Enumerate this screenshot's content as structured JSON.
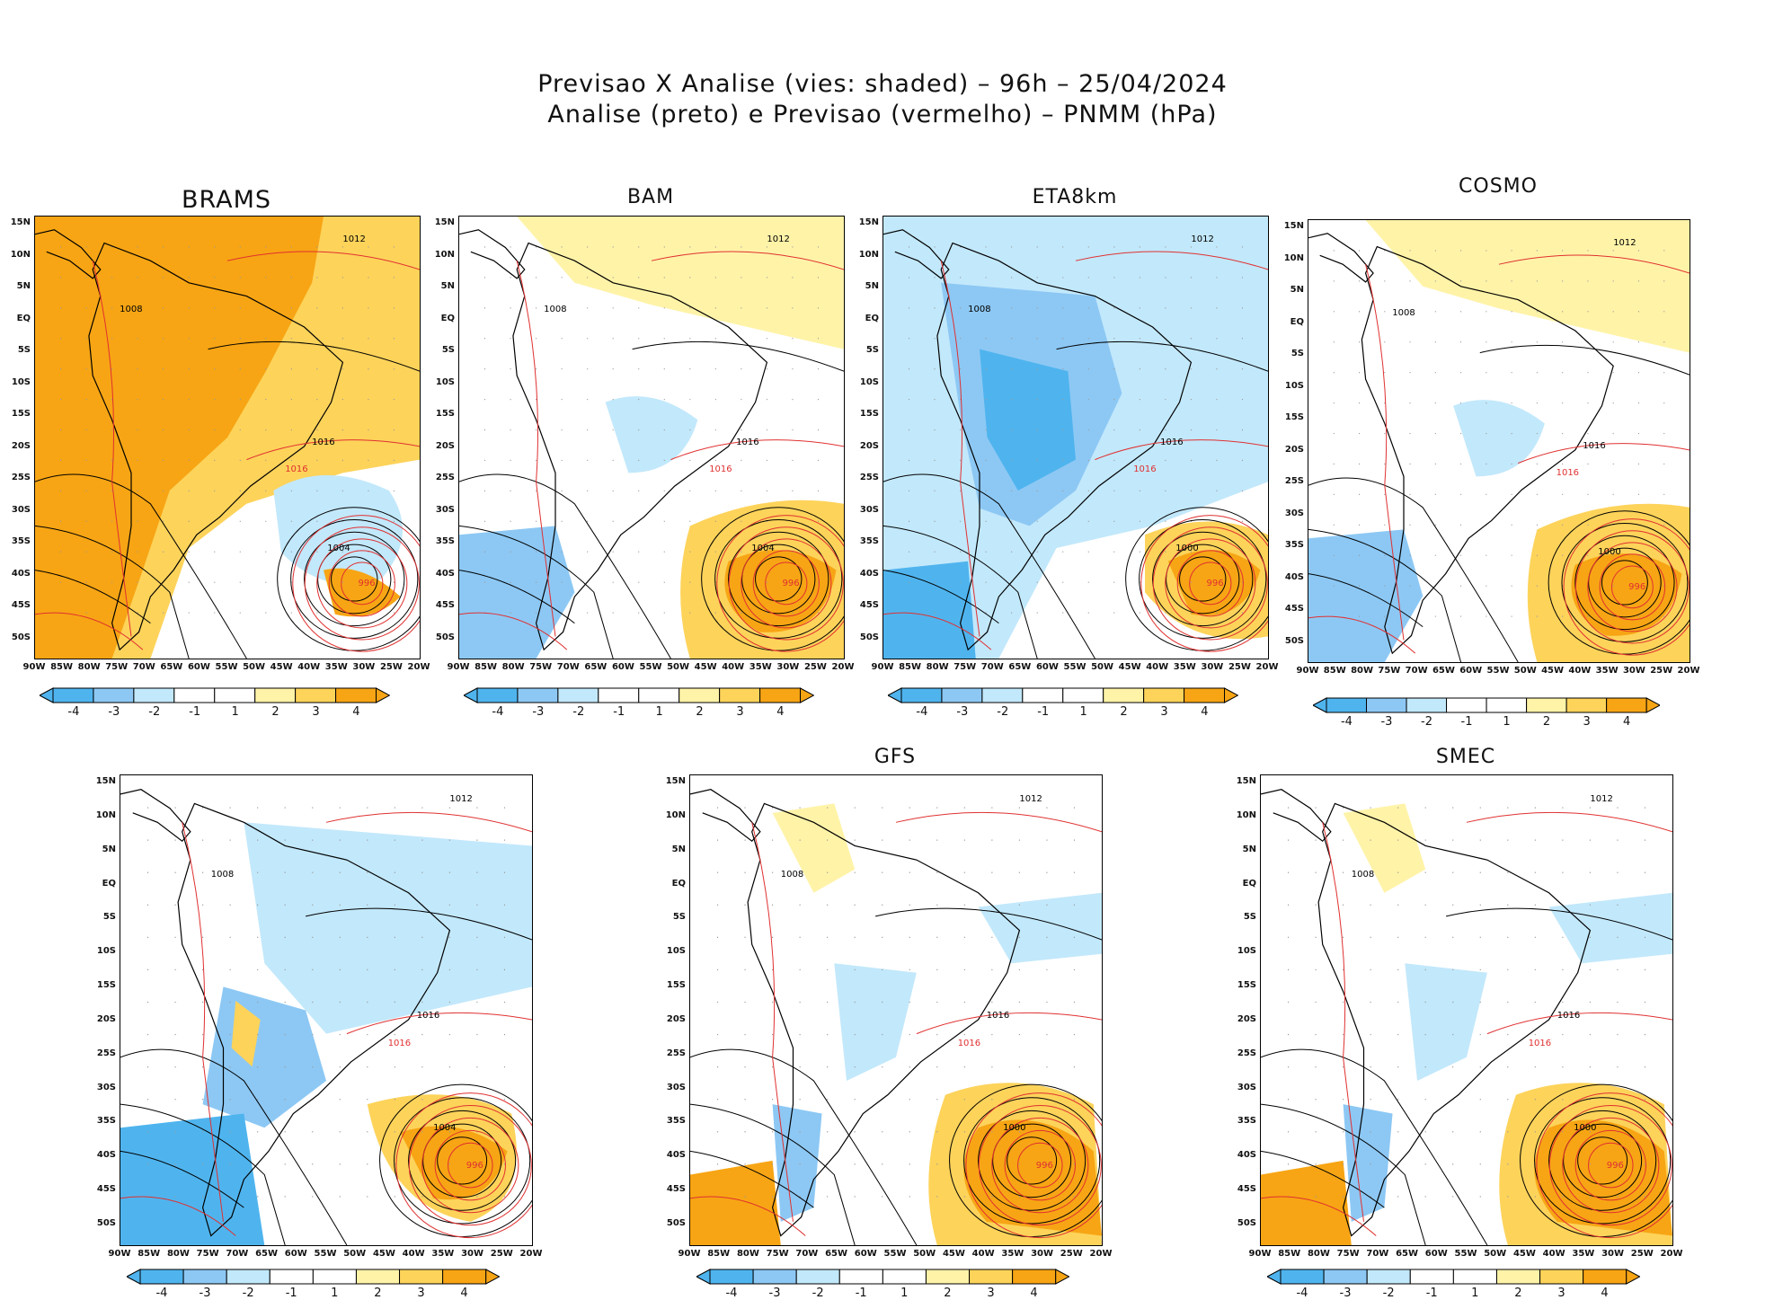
{
  "header": {
    "line1": "Previsao X Analise (vies: shaded) – 96h – 25/04/2024",
    "line2": "Analise (preto) e Previsao (vermelho) – PNMM (hPa)"
  },
  "axes": {
    "lat_labels": [
      "15N",
      "10N",
      "5N",
      "EQ",
      "5S",
      "10S",
      "15S",
      "20S",
      "25S",
      "30S",
      "35S",
      "40S",
      "45S",
      "50S"
    ],
    "lon_labels": [
      "90W",
      "85W",
      "80W",
      "75W",
      "70W",
      "65W",
      "60W",
      "55W",
      "50W",
      "45W",
      "40W",
      "35W",
      "30W",
      "25W",
      "20W"
    ]
  },
  "colorbar": {
    "labels": [
      "-4",
      "-3",
      "-2",
      "-1",
      "1",
      "2",
      "3",
      "4"
    ],
    "colors": [
      "#4fb4ee",
      "#8dc8f4",
      "#c2e8fb",
      "#ffffff",
      "#ffffff",
      "#fff3a8",
      "#fdd35a",
      "#f7a514"
    ]
  },
  "colors": {
    "analysis": "#000000",
    "forecast": "#e03030",
    "warm": "#f7a514",
    "cold": "#4fb4ee"
  },
  "panels": [
    {
      "id": "brams",
      "title": "BRAMS",
      "bias": "warm",
      "labels": {
        "low_analysis": "1004",
        "low_forecast": "996",
        "high1": "1016",
        "high2": "1012",
        "andes": "1008"
      }
    },
    {
      "id": "bam",
      "title": "BAM",
      "bias": "mixed",
      "labels": {
        "low_analysis": "1004",
        "low_forecast": "996",
        "high1": "1016",
        "high2": "1012",
        "andes": "1008"
      }
    },
    {
      "id": "eta8km",
      "title": "ETA8km",
      "bias": "cold",
      "labels": {
        "low_analysis": "1000",
        "low_forecast": "996",
        "high1": "1016",
        "high2": "1012",
        "andes": "1008"
      }
    },
    {
      "id": "cosmo",
      "title": "COSMO",
      "bias": "mixed",
      "labels": {
        "low_analysis": "1000",
        "low_forecast": "996",
        "high1": "1016",
        "high2": "1012",
        "andes": "1008"
      }
    },
    {
      "id": "unnamed",
      "title": "",
      "bias": "cool",
      "labels": {
        "low_analysis": "1004",
        "low_forecast": "996",
        "high1": "1016",
        "high2": "1012",
        "andes": "1008"
      }
    },
    {
      "id": "gfs",
      "title": "GFS",
      "bias": "neutral",
      "labels": {
        "low_analysis": "1000",
        "low_forecast": "996",
        "high1": "1016",
        "high2": "1012",
        "andes": "1008"
      }
    },
    {
      "id": "smec",
      "title": "SMEC",
      "bias": "neutral",
      "labels": {
        "low_analysis": "1000",
        "low_forecast": "996",
        "high1": "1016",
        "high2": "1012",
        "andes": "1008"
      }
    }
  ]
}
